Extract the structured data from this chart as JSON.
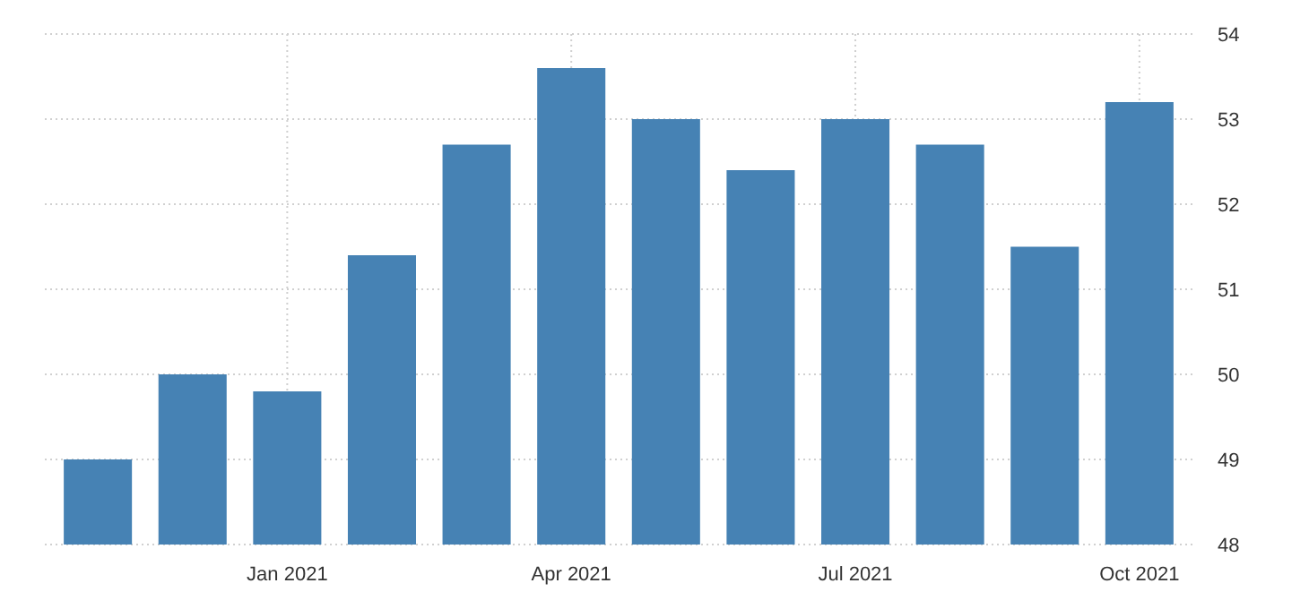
{
  "chart_data": {
    "type": "bar",
    "categories": [
      null,
      null,
      "Jan 2021",
      null,
      null,
      "Apr 2021",
      null,
      null,
      "Jul 2021",
      null,
      null,
      "Oct 2021"
    ],
    "values": [
      49.0,
      50.0,
      49.8,
      51.4,
      52.7,
      53.6,
      53.0,
      52.4,
      53.0,
      52.7,
      51.5,
      53.2
    ],
    "color": "#4682b4",
    "ylim": [
      48,
      54
    ],
    "yticks": [
      48,
      49,
      50,
      51,
      52,
      53,
      54
    ],
    "grid": true
  }
}
